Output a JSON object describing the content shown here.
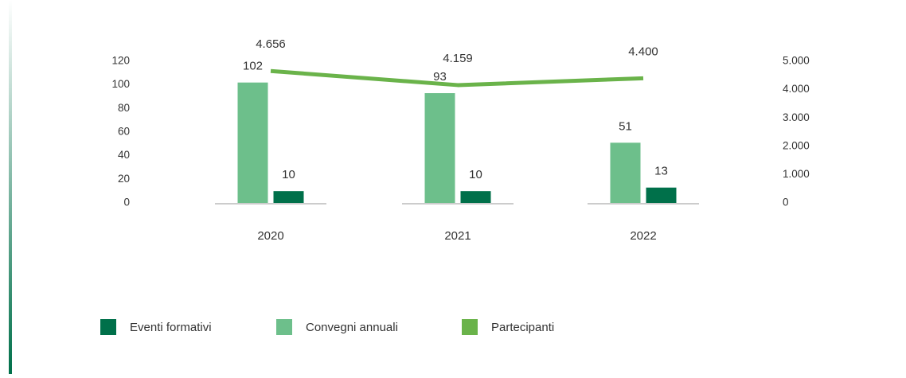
{
  "chart_data": {
    "type": "bar",
    "categories": [
      "2020",
      "2021",
      "2022"
    ],
    "series": [
      {
        "name": "Eventi formativi",
        "color": "#00704a",
        "values": [
          10,
          10,
          13
        ]
      },
      {
        "name": "Convegni annuali",
        "color": "#6dbf8b",
        "values": [
          102,
          93,
          51
        ]
      },
      {
        "name": "Partecipanti",
        "color": "#6ab34a",
        "type": "line",
        "axis": "y2",
        "values": [
          4656,
          4159,
          4400
        ],
        "value_labels": [
          "4.656",
          "4.159",
          "4.400"
        ]
      }
    ],
    "ylim": [
      0,
      120
    ],
    "yticks": [
      0,
      20,
      40,
      60,
      80,
      100,
      120
    ],
    "y2lim": [
      0,
      5000
    ],
    "y2ticks": [
      0,
      {
        "value": 1000,
        "label": "1.000"
      },
      {
        "value": 2000,
        "label": "2.000"
      },
      {
        "value": 3000,
        "label": "3.000"
      },
      {
        "value": 4000,
        "label": "4.000"
      },
      {
        "value": 5000,
        "label": "5.000"
      }
    ],
    "legend": "bottom-left"
  }
}
